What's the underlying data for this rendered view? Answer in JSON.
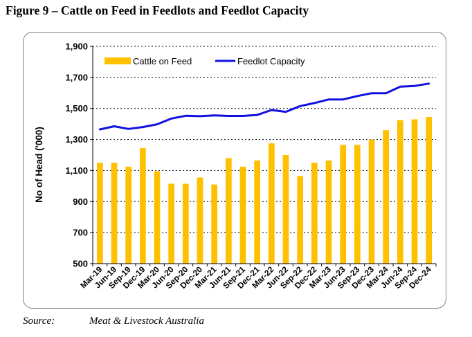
{
  "figure_title": "Figure 9 – Cattle on Feed in Feedlots and Feedlot Capacity",
  "source": {
    "label": "Source:",
    "value": "Meat & Livestock Australia"
  },
  "chart_data": {
    "type": "bar",
    "title": "",
    "xlabel": "",
    "ylabel": "No of Head ('000)",
    "ylim": [
      500,
      1900
    ],
    "yticks": [
      500,
      700,
      900,
      1100,
      1300,
      1500,
      1700,
      1900
    ],
    "ytick_labels": [
      "500",
      "700",
      "900",
      "1,100",
      "1,300",
      "1,500",
      "1,700",
      "1,900"
    ],
    "grid": "horizontal dashed",
    "legend": "top-left",
    "categories": [
      "Mar-19",
      "Jun-19",
      "Sep-19",
      "Dec-19",
      "Mar-20",
      "Jun-20",
      "Sep-20",
      "Dec-20",
      "Mar-21",
      "Jun-21",
      "Sep-21",
      "Dec-21",
      "Mar-22",
      "Jun-22",
      "Sep-22",
      "Dec-22",
      "Mar-23",
      "Jun-23",
      "Sep-23",
      "Dec-23",
      "Mar-24",
      "Jun-24",
      "Sep-24",
      "Dec-24"
    ],
    "series": [
      {
        "name": "Cattle on Feed",
        "kind": "bar",
        "color": "#FFC000",
        "values": [
          1150,
          1150,
          1125,
          1245,
          1095,
          1015,
          1015,
          1055,
          1010,
          1180,
          1125,
          1165,
          1275,
          1200,
          1065,
          1150,
          1165,
          1265,
          1265,
          1300,
          1360,
          1425,
          1430,
          1445
        ]
      },
      {
        "name": "Feedlot Capacity",
        "kind": "line",
        "color": "#1010E0",
        "values": [
          1365,
          1385,
          1368,
          1380,
          1398,
          1435,
          1453,
          1450,
          1455,
          1452,
          1452,
          1458,
          1490,
          1478,
          1515,
          1535,
          1558,
          1558,
          1580,
          1598,
          1598,
          1640,
          1645,
          1660
        ]
      }
    ]
  }
}
